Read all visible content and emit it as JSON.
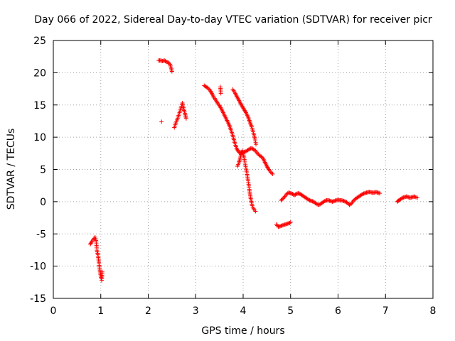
{
  "chart_data": {
    "type": "scatter",
    "title": "Day 066 of 2022, Sidereal Day-to-day VTEC variation (SDTVAR) for receiver picr",
    "xlabel": "GPS time / hours",
    "ylabel": "SDTVAR / TECUs",
    "xlim": [
      0,
      8
    ],
    "ylim": [
      -15,
      25
    ],
    "xticks": [
      0,
      1,
      2,
      3,
      4,
      5,
      6,
      7,
      8
    ],
    "yticks": [
      -15,
      -10,
      -5,
      0,
      5,
      10,
      15,
      20,
      25
    ],
    "grid": true,
    "marker": "+",
    "series_color": "#ff0000",
    "segments": [
      [
        [
          0.78,
          -6.6
        ],
        [
          0.8,
          -6.3
        ],
        [
          0.82,
          -6.1
        ],
        [
          0.84,
          -5.9
        ],
        [
          0.86,
          -5.7
        ],
        [
          0.88,
          -5.5
        ],
        [
          0.9,
          -6.0
        ],
        [
          0.92,
          -7.6
        ],
        [
          0.94,
          -8.2
        ],
        [
          0.96,
          -9.4
        ],
        [
          0.98,
          -10.6
        ],
        [
          1.0,
          -11.5
        ],
        [
          1.02,
          -12.2
        ],
        [
          1.03,
          -10.9
        ]
      ],
      [
        [
          2.28,
          12.4
        ]
      ],
      [
        [
          2.22,
          21.9
        ],
        [
          2.26,
          21.9
        ],
        [
          2.3,
          21.8
        ],
        [
          2.34,
          21.9
        ],
        [
          2.38,
          21.7
        ],
        [
          2.42,
          21.6
        ],
        [
          2.46,
          21.3
        ],
        [
          2.48,
          20.8
        ],
        [
          2.5,
          20.2
        ]
      ],
      [
        [
          2.55,
          11.5
        ],
        [
          2.58,
          12.2
        ],
        [
          2.62,
          12.9
        ],
        [
          2.65,
          13.6
        ],
        [
          2.68,
          14.3
        ],
        [
          2.7,
          14.8
        ],
        [
          2.72,
          15.3
        ],
        [
          2.74,
          14.6
        ],
        [
          2.78,
          13.5
        ],
        [
          2.8,
          12.9
        ]
      ],
      [
        [
          3.18,
          18.0
        ],
        [
          3.22,
          17.8
        ],
        [
          3.26,
          17.6
        ],
        [
          3.3,
          17.3
        ],
        [
          3.34,
          16.8
        ],
        [
          3.38,
          16.2
        ],
        [
          3.42,
          15.8
        ],
        [
          3.46,
          15.3
        ],
        [
          3.5,
          14.9
        ],
        [
          3.54,
          14.4
        ],
        [
          3.58,
          13.8
        ],
        [
          3.62,
          13.2
        ],
        [
          3.66,
          12.6
        ],
        [
          3.7,
          12.0
        ],
        [
          3.74,
          11.2
        ],
        [
          3.78,
          10.3
        ],
        [
          3.82,
          9.2
        ],
        [
          3.86,
          8.3
        ],
        [
          3.9,
          7.8
        ],
        [
          3.94,
          7.5
        ],
        [
          3.98,
          7.6
        ],
        [
          4.02,
          7.7
        ],
        [
          4.06,
          7.8
        ],
        [
          4.1,
          8.0
        ],
        [
          4.14,
          8.2
        ],
        [
          4.18,
          8.3
        ],
        [
          4.22,
          8.1
        ],
        [
          4.26,
          7.9
        ],
        [
          4.3,
          7.5
        ],
        [
          4.34,
          7.2
        ],
        [
          4.38,
          7.0
        ],
        [
          4.42,
          6.7
        ],
        [
          4.46,
          6.1
        ],
        [
          4.5,
          5.5
        ],
        [
          4.54,
          5.0
        ],
        [
          4.58,
          4.6
        ],
        [
          4.62,
          4.3
        ]
      ],
      [
        [
          3.52,
          17.8
        ],
        [
          3.53,
          16.8
        ]
      ],
      [
        [
          3.78,
          17.4
        ],
        [
          3.82,
          17.0
        ],
        [
          3.86,
          16.4
        ],
        [
          3.9,
          15.9
        ],
        [
          3.94,
          15.3
        ],
        [
          3.98,
          14.8
        ],
        [
          4.02,
          14.3
        ],
        [
          4.06,
          13.8
        ],
        [
          4.1,
          13.2
        ],
        [
          4.14,
          12.4
        ],
        [
          4.18,
          11.6
        ],
        [
          4.22,
          10.6
        ],
        [
          4.25,
          9.7
        ],
        [
          4.27,
          8.9
        ]
      ],
      [
        [
          3.88,
          5.5
        ],
        [
          3.91,
          6.0
        ],
        [
          3.94,
          6.8
        ],
        [
          3.96,
          7.5
        ],
        [
          3.98,
          7.9
        ],
        [
          4.02,
          6.8
        ],
        [
          4.06,
          5.2
        ],
        [
          4.1,
          3.5
        ],
        [
          4.13,
          1.9
        ],
        [
          4.16,
          0.5
        ],
        [
          4.19,
          -0.6
        ],
        [
          4.22,
          -1.1
        ],
        [
          4.26,
          -1.5
        ]
      ],
      [
        [
          4.7,
          -3.5
        ],
        [
          4.74,
          -3.9
        ],
        [
          4.78,
          -3.8
        ],
        [
          4.82,
          -3.7
        ],
        [
          4.86,
          -3.6
        ],
        [
          4.9,
          -3.5
        ],
        [
          4.94,
          -3.4
        ],
        [
          4.98,
          -3.3
        ],
        [
          5.0,
          -3.2
        ]
      ],
      [
        [
          4.8,
          0.2
        ],
        [
          4.84,
          0.5
        ],
        [
          4.88,
          0.8
        ],
        [
          4.92,
          1.2
        ],
        [
          4.96,
          1.4
        ],
        [
          5.0,
          1.3
        ],
        [
          5.04,
          1.2
        ],
        [
          5.08,
          1.0
        ],
        [
          5.12,
          1.2
        ],
        [
          5.16,
          1.3
        ],
        [
          5.2,
          1.2
        ],
        [
          5.24,
          1.0
        ],
        [
          5.28,
          0.8
        ],
        [
          5.32,
          0.6
        ],
        [
          5.36,
          0.4
        ],
        [
          5.4,
          0.2
        ],
        [
          5.44,
          0.1
        ],
        [
          5.48,
          0.0
        ],
        [
          5.52,
          -0.2
        ],
        [
          5.56,
          -0.4
        ],
        [
          5.6,
          -0.5
        ],
        [
          5.64,
          -0.3
        ],
        [
          5.68,
          -0.1
        ],
        [
          5.72,
          0.1
        ],
        [
          5.76,
          0.2
        ],
        [
          5.8,
          0.2
        ],
        [
          5.84,
          0.1
        ],
        [
          5.88,
          0.0
        ],
        [
          5.92,
          0.1
        ],
        [
          5.96,
          0.2
        ],
        [
          6.0,
          0.3
        ],
        [
          6.04,
          0.2
        ],
        [
          6.08,
          0.2
        ],
        [
          6.12,
          0.1
        ],
        [
          6.16,
          0.0
        ],
        [
          6.2,
          -0.2
        ],
        [
          6.24,
          -0.5
        ],
        [
          6.28,
          -0.3
        ],
        [
          6.32,
          0.1
        ],
        [
          6.36,
          0.4
        ],
        [
          6.4,
          0.6
        ],
        [
          6.44,
          0.8
        ],
        [
          6.48,
          1.0
        ],
        [
          6.52,
          1.2
        ],
        [
          6.56,
          1.3
        ],
        [
          6.6,
          1.4
        ],
        [
          6.64,
          1.5
        ],
        [
          6.68,
          1.5
        ],
        [
          6.72,
          1.4
        ],
        [
          6.76,
          1.4
        ],
        [
          6.8,
          1.5
        ],
        [
          6.84,
          1.4
        ],
        [
          6.88,
          1.3
        ]
      ],
      [
        [
          7.25,
          0.0
        ],
        [
          7.28,
          0.2
        ],
        [
          7.32,
          0.4
        ],
        [
          7.36,
          0.6
        ],
        [
          7.4,
          0.7
        ],
        [
          7.44,
          0.8
        ],
        [
          7.48,
          0.7
        ],
        [
          7.52,
          0.6
        ],
        [
          7.56,
          0.7
        ],
        [
          7.6,
          0.8
        ],
        [
          7.64,
          0.7
        ],
        [
          7.67,
          0.6
        ]
      ]
    ]
  }
}
